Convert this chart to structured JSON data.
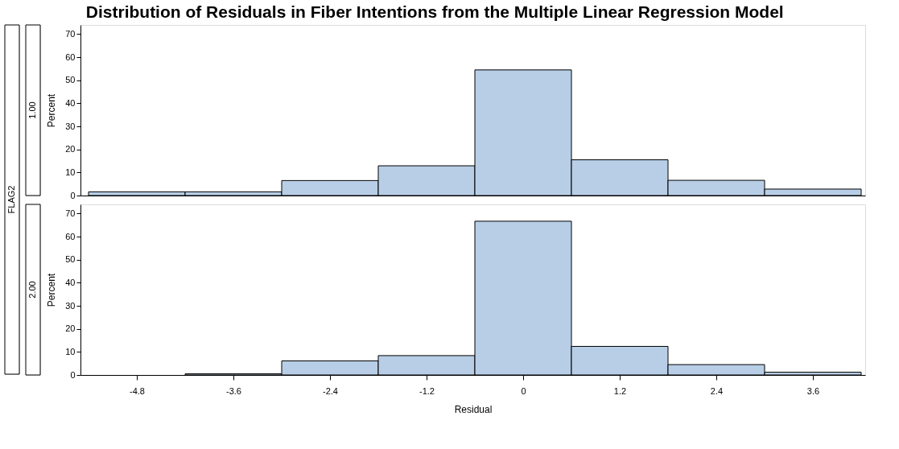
{
  "chart_data": [
    {
      "type": "histogram",
      "title": "Distribution of Residuals in Fiber Intentions from the Multiple Linear Regression Model",
      "subtitle": "1.00",
      "annotations": [
        "FLAG2"
      ],
      "ylabel": "Percent",
      "color": "#b8cee6",
      "bins": [
        -5.4,
        -4.2,
        -3.0,
        -1.8,
        -0.6,
        0.6,
        1.8,
        3.0,
        4.2
      ],
      "values": [
        1.6,
        1.6,
        6.5,
        12.9,
        54.5,
        15.5,
        6.6,
        2.8
      ],
      "xlim": [
        -5.5,
        4.25
      ],
      "ylim": [
        0,
        74
      ],
      "xticks": [
        -4.8,
        -3.6,
        -2.4,
        -1.2,
        0,
        1.2,
        2.4,
        3.6
      ],
      "yticks": [
        0,
        10,
        20,
        30,
        40,
        50,
        60,
        70
      ],
      "tick_labels": "y"
    },
    {
      "type": "histogram",
      "subtitle": "2.00",
      "xlabel": "Residual",
      "ylabel": "Percent",
      "color": "#b8cee6",
      "bins": [
        -5.4,
        -4.2,
        -3.0,
        -1.8,
        -0.6,
        0.6,
        1.8,
        3.0,
        4.2
      ],
      "values": [
        0,
        0.5,
        6.1,
        8.4,
        66.7,
        12.4,
        4.5,
        1.2
      ],
      "xlim": [
        -5.5,
        4.25
      ],
      "ylim": [
        0,
        74
      ],
      "xticks": [
        -4.8,
        -3.6,
        -2.4,
        -1.2,
        0,
        1.2,
        2.4,
        3.6
      ],
      "yticks": [
        0,
        10,
        20,
        30,
        40,
        50,
        60,
        70
      ]
    }
  ]
}
